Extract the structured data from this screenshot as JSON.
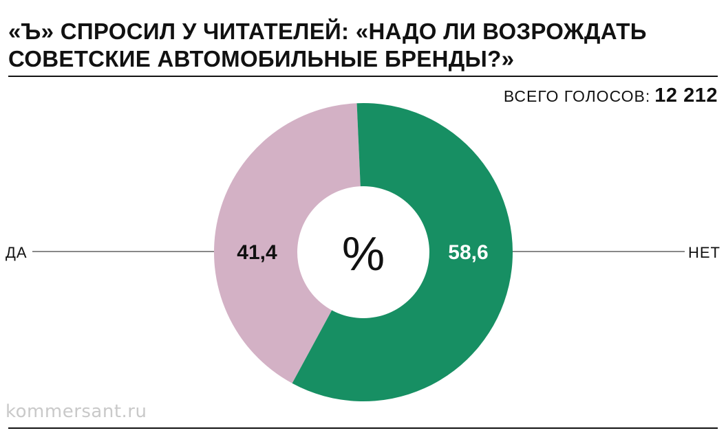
{
  "header": {
    "title_line1": "«Ъ» СПРОСИЛ У ЧИТАТЕЛЕЙ: «НАДО ЛИ ВОЗРОЖДАТЬ",
    "title_line2": "СОВЕТСКИЕ АВТОМОБИЛЬНЫЕ БРЕНДЫ?»"
  },
  "total": {
    "label": "ВСЕГО ГОЛОСОВ:",
    "value": "12 212"
  },
  "watermark": "kommersant.ru",
  "chart_data": {
    "type": "pie",
    "title": "«Ъ» СПРОСИЛ У ЧИТАТЕЛЕЙ: «НАДО ЛИ ВОЗРОЖДАТЬ СОВЕТСКИЕ АВТОМОБИЛЬНЫЕ БРЕНДЫ?»",
    "unit": "%",
    "slices": [
      {
        "label": "ДА",
        "value": 41.4,
        "value_label": "41,4",
        "color": "#d3b1c5",
        "text_color": "#111111"
      },
      {
        "label": "НЕТ",
        "value": 58.6,
        "value_label": "58,6",
        "color": "#178f63",
        "text_color": "#ffffff"
      }
    ]
  }
}
